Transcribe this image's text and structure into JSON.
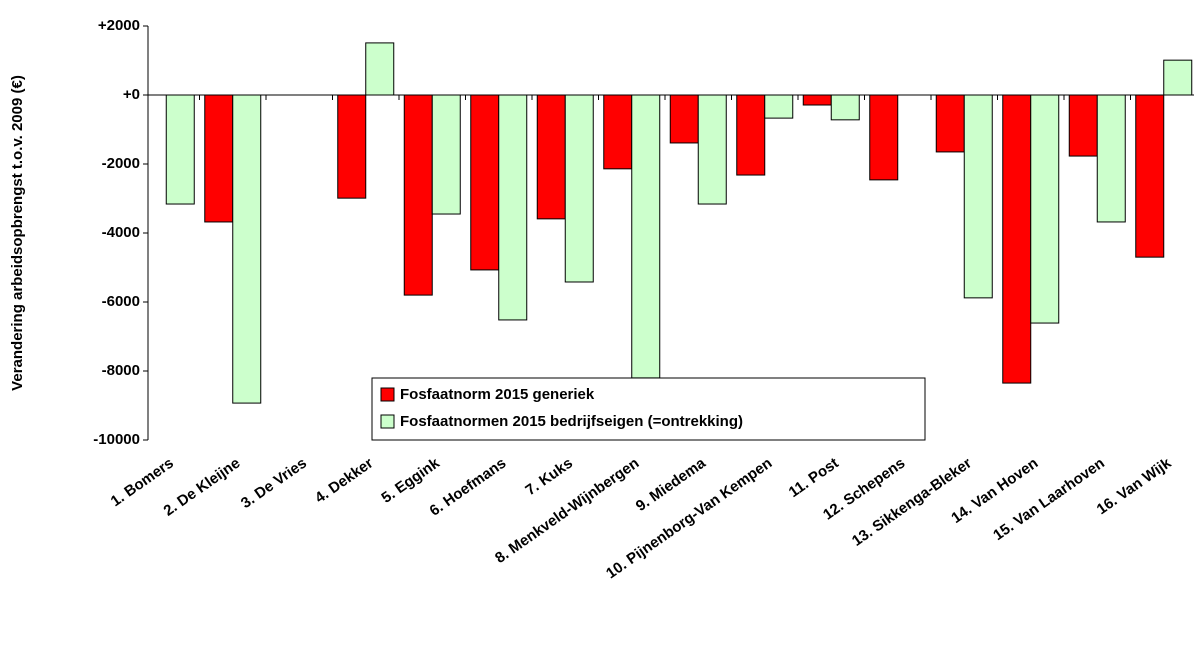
{
  "chart_data": {
    "type": "bar",
    "y_label": "Verandering arbeidsopbrengst t.o.v. 2009 (€)",
    "categories": [
      "1. Bomers",
      "2. De Kleijne",
      "3. De Vries",
      "4. Dekker",
      "5. Eggink",
      "6. Hoefmans",
      "7. Kuks",
      "8. Menkveld-Wijnbergen",
      "9. Miedema",
      "10. Pijnenborg-Van Kempen",
      "11. Post",
      "12. Schepens",
      "13. Sikkenga-Bleker",
      "14. Van Hoven",
      "15. Van Laarhoven",
      "16. Van Wijk"
    ],
    "series": [
      {
        "name": "Fosfaatnorm 2015 generiek",
        "color": "#ff0000",
        "values": [
          0,
          -3680,
          0,
          -2990,
          -5800,
          -5070,
          -3590,
          -2140,
          -1390,
          -2320,
          -290,
          -2460,
          -1650,
          -8350,
          -1770,
          -4700
        ]
      },
      {
        "name": "Fosfaatnormen 2015 bedrijfseigen (=ontrekking)",
        "color": "#ccffcc",
        "values": [
          -3160,
          -8930,
          0,
          1510,
          -3450,
          -6520,
          -5420,
          -8200,
          -3160,
          -670,
          -720,
          0,
          -5880,
          -6610,
          -3680,
          1010
        ]
      }
    ],
    "ylim": [
      -10000,
      2000
    ],
    "yticks": [
      -10000,
      -8000,
      -6000,
      -4000,
      -2000,
      {
        "value": 0,
        "label": "+0"
      },
      {
        "value": 2000,
        "label": "+2000"
      }
    ]
  }
}
